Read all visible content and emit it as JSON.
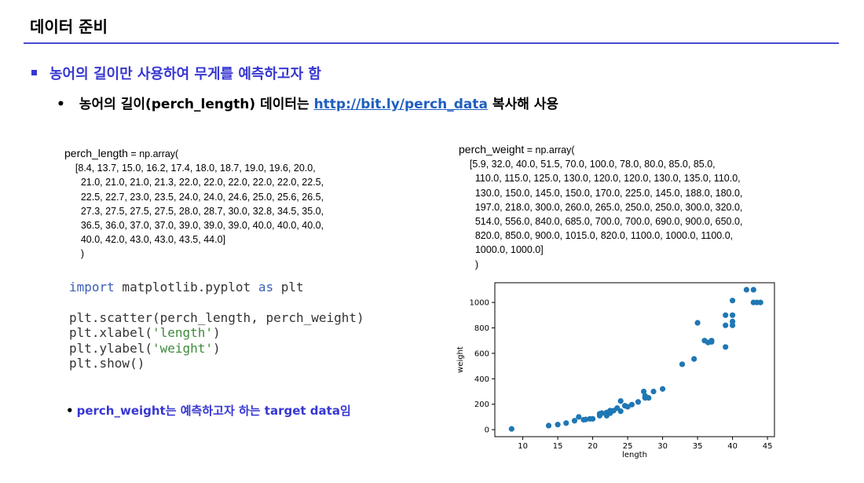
{
  "slide": {
    "title": "데이터 준비",
    "bullet1": "농어의 길이만 사용하여 무게를 예측하고자 함",
    "bullet2_prefix": "농어의 길이(perch_length) 데이터는 ",
    "bullet2_link": "http://bit.ly/perch_data",
    "bullet2_suffix": " 복사해 사용",
    "bullet2_marker": "•"
  },
  "length_array": {
    "header_var": "perch_length",
    "header_rest": " = np.array(",
    "lines": [
      "    [8.4, 13.7, 15.0, 16.2, 17.4, 18.0, 18.7, 19.0, 19.6, 20.0,",
      "      21.0, 21.0, 21.0, 21.3, 22.0, 22.0, 22.0, 22.0, 22.0, 22.5,",
      "      22.5, 22.7, 23.0, 23.5, 24.0, 24.0, 24.6, 25.0, 25.6, 26.5,",
      "      27.3, 27.5, 27.5, 27.5, 28.0, 28.7, 30.0, 32.8, 34.5, 35.0,",
      "      36.5, 36.0, 37.0, 37.0, 39.0, 39.0, 39.0, 40.0, 40.0, 40.0,",
      "      40.0, 42.0, 43.0, 43.0, 43.5, 44.0]",
      "      )"
    ]
  },
  "weight_array": {
    "header_var": "perch_weight",
    "header_rest": " = np.array(",
    "lines": [
      "    [5.9, 32.0, 40.0, 51.5, 70.0, 100.0, 78.0, 80.0, 85.0, 85.0,",
      "      110.0, 115.0, 125.0, 130.0, 120.0, 120.0, 130.0, 135.0, 110.0,",
      "      130.0, 150.0, 145.0, 150.0, 170.0, 225.0, 145.0, 188.0, 180.0,",
      "      197.0, 218.0, 300.0, 260.0, 265.0, 250.0, 250.0, 300.0, 320.0,",
      "      514.0, 556.0, 840.0, 685.0, 700.0, 700.0, 690.0, 900.0, 650.0,",
      "      820.0, 850.0, 900.0, 1015.0, 820.0, 1100.0, 1000.0, 1100.0,",
      "      1000.0, 1000.0]",
      "      )"
    ]
  },
  "python_code": {
    "line1_kw1": "import",
    "line1_mid": " matplotlib.pyplot ",
    "line1_kw2": "as",
    "line1_end": " plt",
    "line2": "plt.scatter(perch_length, perch_weight)",
    "line3_pre": "plt.xlabel(",
    "line3_str": "'length'",
    "line3_post": ")",
    "line4_pre": "plt.ylabel(",
    "line4_str": "'weight'",
    "line4_post": ")",
    "line5": "plt.show()"
  },
  "note": {
    "marker": "•",
    "text": "perch_weight는 예측하고자 하는 target data임"
  },
  "colors": {
    "accent_blue": "#3737d2",
    "link": "#1f5fbf",
    "point": "#1f77b4"
  },
  "chart_data": {
    "type": "scatter",
    "xlabel": "length",
    "ylabel": "weight",
    "xlim": [
      6,
      46
    ],
    "ylim": [
      -55,
      1155
    ],
    "xticks": [
      10,
      15,
      20,
      25,
      30,
      35,
      40,
      45
    ],
    "yticks": [
      0,
      200,
      400,
      600,
      800,
      1000
    ],
    "grid": false,
    "x": [
      8.4,
      13.7,
      15.0,
      16.2,
      17.4,
      18.0,
      18.7,
      19.0,
      19.6,
      20.0,
      21.0,
      21.0,
      21.0,
      21.3,
      22.0,
      22.0,
      22.0,
      22.0,
      22.0,
      22.5,
      22.5,
      22.7,
      23.0,
      23.5,
      24.0,
      24.0,
      24.6,
      25.0,
      25.6,
      26.5,
      27.3,
      27.5,
      27.5,
      27.5,
      28.0,
      28.7,
      30.0,
      32.8,
      34.5,
      35.0,
      36.5,
      36.0,
      37.0,
      37.0,
      39.0,
      39.0,
      39.0,
      40.0,
      40.0,
      40.0,
      40.0,
      42.0,
      43.0,
      43.0,
      43.5,
      44.0
    ],
    "y": [
      5.9,
      32.0,
      40.0,
      51.5,
      70.0,
      100.0,
      78.0,
      80.0,
      85.0,
      85.0,
      110.0,
      115.0,
      125.0,
      130.0,
      120.0,
      120.0,
      130.0,
      135.0,
      110.0,
      130.0,
      150.0,
      145.0,
      150.0,
      170.0,
      225.0,
      145.0,
      188.0,
      180.0,
      197.0,
      218.0,
      300.0,
      260.0,
      265.0,
      250.0,
      250.0,
      300.0,
      320.0,
      514.0,
      556.0,
      840.0,
      685.0,
      700.0,
      700.0,
      690.0,
      900.0,
      650.0,
      820.0,
      850.0,
      900.0,
      1015.0,
      820.0,
      1100.0,
      1000.0,
      1100.0,
      1000.0,
      1000.0
    ]
  }
}
